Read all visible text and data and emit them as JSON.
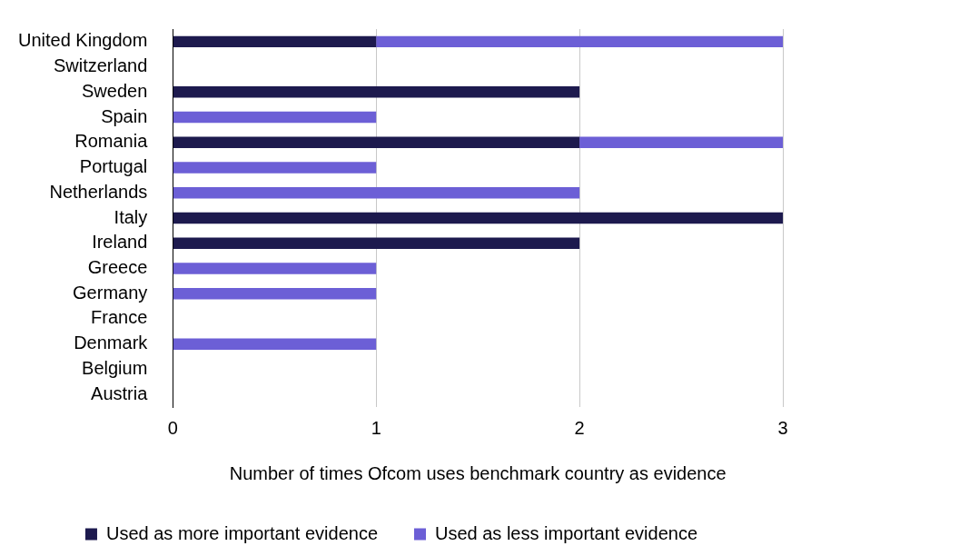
{
  "chart_data": {
    "type": "bar",
    "orientation": "horizontal",
    "stacked": true,
    "xlabel": "Number of times Ofcom uses benchmark country as evidence",
    "categories": [
      "United Kingdom",
      "Switzerland",
      "Sweden",
      "Spain",
      "Romania",
      "Portugal",
      "Netherlands",
      "Italy",
      "Ireland",
      "Greece",
      "Germany",
      "France",
      "Denmark",
      "Belgium",
      "Austria"
    ],
    "series": [
      {
        "name": "Used as more important evidence",
        "color": "#1d1a4e",
        "values": [
          1,
          0,
          2,
          0,
          2,
          0,
          0,
          3,
          2,
          0,
          0,
          0,
          0,
          0,
          0
        ]
      },
      {
        "name": "Used as less important evidence",
        "color": "#6c5fd6",
        "values": [
          2,
          0,
          0,
          1,
          1,
          1,
          2,
          0,
          0,
          1,
          1,
          0,
          1,
          0,
          0
        ]
      }
    ],
    "xlim": [
      0,
      3
    ],
    "xticks": [
      0,
      1,
      2,
      3
    ],
    "grid": "x",
    "legend": "bottom"
  }
}
